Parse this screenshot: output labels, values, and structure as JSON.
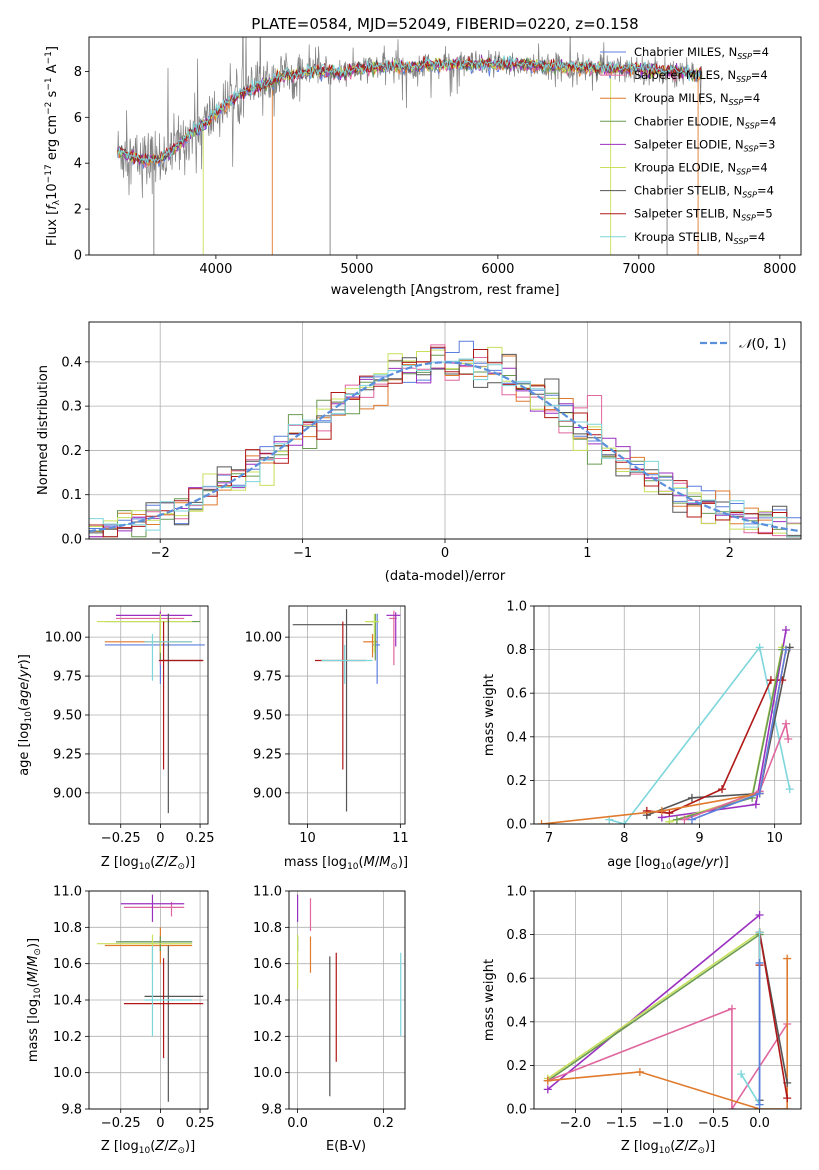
{
  "colors": {
    "chabrier_miles": "#5b7fde",
    "salpeter_miles": "#e0669e",
    "kroupa_miles": "#e07a2c",
    "chabrier_elodie": "#6a9a52",
    "salpeter_elodie": "#9b30c0",
    "kroupa_elodie": "#c8e05c",
    "chabrier_stelib": "#555555",
    "salpeter_stelib": "#b01818",
    "kroupa_stelib": "#7dd6dc",
    "data_spectrum": "#808080",
    "normal_curve": "#5a8fdc"
  },
  "chart_data": [
    {
      "type": "line",
      "title": "PLATE=0584, MJD=52049, FIBERID=0220, z=0.158",
      "xlabel": "wavelength [Angstrom, rest frame]",
      "ylabel": "Flux [f_λ10⁻¹⁷ erg cm⁻² s⁻¹ A⁻¹]",
      "xlim": [
        3100,
        8150
      ],
      "ylim": [
        0,
        9.5
      ],
      "xticks": [
        4000,
        5000,
        6000,
        7000,
        8000
      ],
      "yticks": [
        0,
        2,
        4,
        6,
        8
      ],
      "legend_position": "right",
      "legend": [
        "Chabrier MILES, N_SSP=4",
        "Salpeter MILES, N_SSP=4",
        "Kroupa MILES, N_SSP=4",
        "Chabrier ELODIE, N_SSP=4",
        "Salpeter ELODIE, N_SSP=3",
        "Kroupa ELODIE, N_SSP=4",
        "Chabrier STELIB, N_SSP=4",
        "Salpeter STELIB, N_SSP=5",
        "Kroupa STELIB, N_SSP=4"
      ],
      "series_keys": [
        "chabrier_miles",
        "salpeter_miles",
        "kroupa_miles",
        "chabrier_elodie",
        "salpeter_elodie",
        "kroupa_elodie",
        "chabrier_stelib",
        "salpeter_stelib",
        "kroupa_stelib"
      ],
      "model_continuum": {
        "x": [
          3300,
          3400,
          3500,
          3600,
          3700,
          3800,
          3900,
          4000,
          4100,
          4200,
          4300,
          4400,
          4500,
          4600,
          4700,
          4800,
          4900,
          5000,
          5200,
          5400,
          5600,
          5800,
          6000,
          6200,
          6400,
          6600,
          6800,
          7000,
          7200,
          7400
        ],
        "y": [
          4.5,
          4.3,
          4.1,
          4.2,
          4.6,
          5.2,
          5.6,
          6.2,
          6.7,
          7.1,
          7.3,
          7.6,
          7.8,
          7.9,
          8.0,
          8.0,
          7.9,
          8.1,
          8.2,
          8.2,
          8.3,
          8.3,
          8.3,
          8.3,
          8.2,
          8.2,
          8.1,
          8.1,
          8.0,
          7.9
        ]
      }
    },
    {
      "type": "line",
      "xlabel": "(data-model)/error",
      "ylabel": "Normed distribution",
      "xlim": [
        -2.5,
        2.5
      ],
      "ylim": [
        0,
        0.49
      ],
      "xticks": [
        -2,
        -1,
        0,
        1,
        2
      ],
      "yticks": [
        0.0,
        0.1,
        0.2,
        0.3,
        0.4
      ],
      "grid": true,
      "legend_position": "top-right",
      "normal_curve_label": "N(0,1)",
      "histogram_bin_width": 0.1,
      "histogram_shape_note": "step histograms per model, peak ~0.40-0.47 near 0"
    },
    {
      "type": "scatter",
      "xlabel": "Z [log10(Z/Z⊙)]",
      "ylabel": "age [log10(age/yr)]",
      "xlim": [
        -0.45,
        0.3
      ],
      "ylim": [
        8.8,
        10.2
      ],
      "xticks": [
        -0.25,
        0.0,
        0.25
      ],
      "yticks": [
        9.0,
        9.25,
        9.5,
        9.75,
        10.0
      ],
      "grid": true,
      "points": [
        {
          "key": "chabrier_miles",
          "x": 0.0,
          "y": 9.95,
          "xerr": [
            0.35,
            0.28
          ],
          "yerr": [
            0.25,
            0.2
          ]
        },
        {
          "key": "salpeter_miles",
          "x": 0.0,
          "y": 10.12,
          "xerr": [
            0.28,
            0.15
          ],
          "yerr": [
            0.3,
            0.05
          ]
        },
        {
          "key": "kroupa_miles",
          "x": 0.0,
          "y": 9.97,
          "xerr": [
            0.35,
            0.2
          ],
          "yerr": [
            0.1,
            0.05
          ]
        },
        {
          "key": "chabrier_elodie",
          "x": 0.0,
          "y": 10.1,
          "xerr": [
            0.35,
            0.25
          ],
          "yerr": [
            0.25,
            0.05
          ]
        },
        {
          "key": "salpeter_elodie",
          "x": 0.0,
          "y": 10.14,
          "xerr": [
            0.28,
            0.2
          ],
          "yerr": [
            0.2,
            0.02
          ]
        },
        {
          "key": "kroupa_elodie",
          "x": 0.0,
          "y": 10.1,
          "xerr": [
            0.4,
            0.2
          ],
          "yerr": [
            0.2,
            0.05
          ]
        },
        {
          "key": "chabrier_stelib",
          "x": 0.05,
          "y": 9.85,
          "xerr": [
            0.05,
            0.22
          ],
          "yerr": [
            0.98,
            0.3
          ]
        },
        {
          "key": "salpeter_stelib",
          "x": 0.02,
          "y": 9.85,
          "xerr": [
            0.03,
            0.25
          ],
          "yerr": [
            0.7,
            0.25
          ]
        },
        {
          "key": "kroupa_stelib",
          "x": -0.05,
          "y": 9.97,
          "xerr": [
            0.05,
            0.25
          ],
          "yerr": [
            0.25,
            0.05
          ]
        }
      ]
    },
    {
      "type": "scatter",
      "xlabel": "mass [log10(M/M⊙)]",
      "ylabel": "",
      "xlim": [
        9.8,
        11.05
      ],
      "ylim": [
        8.8,
        10.2
      ],
      "xticks": [
        10,
        11
      ],
      "yticks": [
        9.0,
        9.25,
        9.5,
        9.75,
        10.0
      ],
      "grid": true,
      "points": [
        {
          "key": "chabrier_miles",
          "x": 10.75,
          "y": 9.95,
          "xerr": [
            0.05,
            0.03
          ],
          "yerr": [
            0.25,
            0.2
          ]
        },
        {
          "key": "salpeter_miles",
          "x": 10.93,
          "y": 10.12,
          "xerr": [
            0.05,
            0.03
          ],
          "yerr": [
            0.3,
            0.05
          ]
        },
        {
          "key": "kroupa_miles",
          "x": 10.7,
          "y": 9.97,
          "xerr": [
            0.1,
            0.05
          ],
          "yerr": [
            0.1,
            0.05
          ]
        },
        {
          "key": "chabrier_elodie",
          "x": 10.73,
          "y": 10.1,
          "xerr": [
            0.05,
            0.03
          ],
          "yerr": [
            0.25,
            0.05
          ]
        },
        {
          "key": "salpeter_elodie",
          "x": 10.95,
          "y": 10.14,
          "xerr": [
            0.1,
            0.05
          ],
          "yerr": [
            0.2,
            0.02
          ]
        },
        {
          "key": "kroupa_elodie",
          "x": 10.72,
          "y": 10.1,
          "xerr": [
            0.1,
            0.05
          ],
          "yerr": [
            0.2,
            0.05
          ]
        },
        {
          "key": "chabrier_stelib",
          "x": 10.42,
          "y": 10.08,
          "xerr": [
            0.58,
            0.28
          ],
          "yerr": [
            1.2,
            0.1
          ]
        },
        {
          "key": "salpeter_stelib",
          "x": 10.38,
          "y": 9.85,
          "xerr": [
            0.3,
            0.25
          ],
          "yerr": [
            0.7,
            0.25
          ]
        },
        {
          "key": "kroupa_stelib",
          "x": 10.4,
          "y": 9.85,
          "xerr": [
            0.25,
            0.3
          ],
          "yerr": [
            0.15,
            0.1
          ]
        }
      ]
    },
    {
      "type": "line",
      "xlabel": "age [log10(age/yr)]",
      "ylabel": "mass weight",
      "xlim": [
        6.8,
        10.35
      ],
      "ylim": [
        0,
        1.0
      ],
      "xticks": [
        7,
        8,
        9,
        10
      ],
      "yticks": [
        0.0,
        0.2,
        0.4,
        0.6,
        0.8,
        1.0
      ],
      "grid": true,
      "series": [
        {
          "key": "kroupa_stelib",
          "x": [
            7.8,
            8.0,
            9.8,
            10.2
          ],
          "y": [
            0.02,
            0.0,
            0.81,
            0.16
          ]
        },
        {
          "key": "chabrier_stelib",
          "x": [
            8.3,
            8.9,
            9.8,
            10.2
          ],
          "y": [
            0.04,
            0.12,
            0.14,
            0.81
          ]
        },
        {
          "key": "salpeter_stelib",
          "x": [
            8.3,
            8.6,
            9.3,
            9.95,
            10.1
          ],
          "y": [
            0.06,
            0.05,
            0.16,
            0.66,
            0.66
          ]
        },
        {
          "key": "salpeter_elodie",
          "x": [
            8.5,
            9.75,
            10.15
          ],
          "y": [
            0.03,
            0.09,
            0.89
          ]
        },
        {
          "key": "kroupa_elodie",
          "x": [
            8.6,
            9.7,
            10.1
          ],
          "y": [
            0.01,
            0.13,
            0.81
          ]
        },
        {
          "key": "chabrier_elodie",
          "x": [
            8.7,
            9.7,
            10.1
          ],
          "y": [
            0.02,
            0.12,
            0.8
          ]
        },
        {
          "key": "salpeter_miles",
          "x": [
            8.8,
            9.8,
            10.15,
            10.18
          ],
          "y": [
            0.02,
            0.15,
            0.46,
            0.39
          ]
        },
        {
          "key": "kroupa_miles",
          "x": [
            6.9,
            8.5,
            9.8,
            10.15
          ],
          "y": [
            0.0,
            0.06,
            0.14,
            0.8
          ]
        },
        {
          "key": "chabrier_miles",
          "x": [
            8.9,
            9.8,
            10.15
          ],
          "y": [
            0.02,
            0.14,
            0.8
          ]
        }
      ]
    },
    {
      "type": "scatter",
      "xlabel": "Z [log10(Z/Z⊙)]",
      "ylabel": "mass [log10(M/M⊙)]",
      "xlim": [
        -0.45,
        0.3
      ],
      "ylim": [
        9.8,
        11.0
      ],
      "xticks": [
        -0.25,
        0.0,
        0.25
      ],
      "yticks": [
        9.8,
        10.0,
        10.2,
        10.4,
        10.6,
        10.8,
        11.0
      ],
      "grid": true,
      "points": [
        {
          "key": "chabrier_miles",
          "x": 0.0,
          "y": 10.72,
          "xerr": [
            0.25,
            0.2
          ],
          "yerr": [
            0.05,
            0.03
          ]
        },
        {
          "key": "salpeter_miles",
          "x": 0.07,
          "y": 10.91,
          "xerr": [
            0.3,
            0.08
          ],
          "yerr": [
            0.05,
            0.03
          ]
        },
        {
          "key": "kroupa_miles",
          "x": 0.0,
          "y": 10.7,
          "xerr": [
            0.35,
            0.2
          ],
          "yerr": [
            0.1,
            0.1
          ]
        },
        {
          "key": "chabrier_elodie",
          "x": 0.0,
          "y": 10.72,
          "xerr": [
            0.28,
            0.2
          ],
          "yerr": [
            0.05,
            0.03
          ]
        },
        {
          "key": "salpeter_elodie",
          "x": -0.05,
          "y": 10.93,
          "xerr": [
            0.2,
            0.2
          ],
          "yerr": [
            0.1,
            0.05
          ]
        },
        {
          "key": "kroupa_elodie",
          "x": -0.05,
          "y": 10.71,
          "xerr": [
            0.35,
            0.25
          ],
          "yerr": [
            0.15,
            0.05
          ]
        },
        {
          "key": "chabrier_stelib",
          "x": 0.05,
          "y": 10.42,
          "xerr": [
            0.15,
            0.22
          ],
          "yerr": [
            0.58,
            0.28
          ]
        },
        {
          "key": "salpeter_stelib",
          "x": 0.02,
          "y": 10.38,
          "xerr": [
            0.25,
            0.25
          ],
          "yerr": [
            0.3,
            0.25
          ]
        },
        {
          "key": "kroupa_stelib",
          "x": -0.05,
          "y": 10.4,
          "xerr": [
            0.05,
            0.25
          ],
          "yerr": [
            0.2,
            0.3
          ]
        }
      ]
    },
    {
      "type": "scatter",
      "xlabel": "E(B-V)",
      "ylabel": "",
      "xlim": [
        -0.02,
        0.25
      ],
      "ylim": [
        9.8,
        11.0
      ],
      "xticks": [
        0.0,
        0.2
      ],
      "yticks": [
        9.8,
        10.0,
        10.2,
        10.4,
        10.6,
        10.8,
        11.0
      ],
      "grid": true,
      "points": [
        {
          "key": "chabrier_miles",
          "x": 0.0,
          "y": 10.72,
          "yerr": [
            0.05,
            0.03
          ]
        },
        {
          "key": "salpeter_miles",
          "x": 0.03,
          "y": 10.88,
          "yerr": [
            0.1,
            0.08
          ]
        },
        {
          "key": "kroupa_miles",
          "x": 0.03,
          "y": 10.7,
          "yerr": [
            0.15,
            0.05
          ]
        },
        {
          "key": "chabrier_elodie",
          "x": 0.0,
          "y": 10.72,
          "yerr": [
            0.05,
            0.03
          ]
        },
        {
          "key": "salpeter_elodie",
          "x": 0.0,
          "y": 10.93,
          "yerr": [
            0.1,
            0.05
          ]
        },
        {
          "key": "kroupa_elodie",
          "x": 0.0,
          "y": 10.71,
          "yerr": [
            0.25,
            0.05
          ]
        },
        {
          "key": "chabrier_stelib",
          "x": 0.075,
          "y": 10.42,
          "yerr": [
            0.55,
            0.22
          ]
        },
        {
          "key": "salpeter_stelib",
          "x": 0.09,
          "y": 10.38,
          "yerr": [
            0.32,
            0.28
          ]
        },
        {
          "key": "kroupa_stelib",
          "x": 0.24,
          "y": 10.4,
          "yerr": [
            0.2,
            0.26
          ]
        }
      ]
    },
    {
      "type": "line",
      "xlabel": "Z [log10(Z/Z⊙)]",
      "ylabel": "mass weight",
      "xlim": [
        -2.45,
        0.45
      ],
      "ylim": [
        0,
        1.0
      ],
      "xticks": [
        -2.0,
        -1.5,
        -1.0,
        -0.5,
        0.0
      ],
      "yticks": [
        0.0,
        0.2,
        0.4,
        0.6,
        0.8,
        1.0
      ],
      "grid": true,
      "series": [
        {
          "key": "salpeter_elodie",
          "x": [
            -2.3,
            0.0
          ],
          "y": [
            0.09,
            0.89
          ]
        },
        {
          "key": "kroupa_elodie",
          "x": [
            -2.3,
            0.0
          ],
          "y": [
            0.14,
            0.81
          ]
        },
        {
          "key": "chabrier_elodie",
          "x": [
            -2.3,
            0.0
          ],
          "y": [
            0.13,
            0.8
          ]
        },
        {
          "key": "salpeter_miles",
          "x": [
            -2.3,
            -0.3,
            -0.3,
            0.3
          ],
          "y": [
            0.13,
            0.46,
            0.0,
            0.39
          ]
        },
        {
          "key": "kroupa_miles",
          "x": [
            -2.3,
            -1.3,
            0.0,
            0.3,
            0.3
          ],
          "y": [
            0.13,
            0.17,
            0.0,
            0.0,
            0.69
          ]
        },
        {
          "key": "chabrier_stelib",
          "x": [
            0.0,
            0.0,
            0.3
          ],
          "y": [
            0.04,
            0.81,
            0.12
          ]
        },
        {
          "key": "salpeter_stelib",
          "x": [
            0.0,
            0.0,
            0.3
          ],
          "y": [
            0.66,
            0.81,
            0.05
          ]
        },
        {
          "key": "kroupa_stelib",
          "x": [
            -0.2,
            0.0,
            0.0
          ],
          "y": [
            0.16,
            0.02,
            0.81
          ]
        },
        {
          "key": "chabrier_miles",
          "x": [
            0.0,
            0.0
          ],
          "y": [
            0.02,
            0.67
          ]
        }
      ]
    }
  ],
  "labels": {
    "title": "PLATE=0584, MJD=52049, FIBERID=0220, z=0.158",
    "spec_xlabel": "wavelength [Angstrom, rest frame]",
    "hist_xlabel": "(data-model)/error",
    "hist_ylabel": "Normed distribution",
    "ebv_xlabel": "E(B-V)"
  }
}
